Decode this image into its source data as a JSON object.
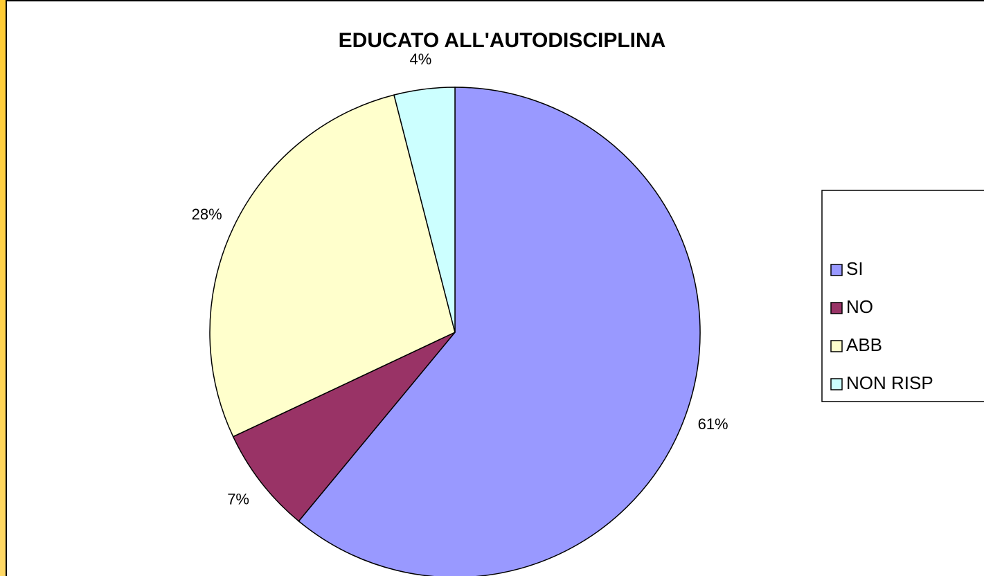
{
  "chart_data": {
    "type": "pie",
    "title": "EDUCATO ALL'AUTODISCIPLINA",
    "categories": [
      "SI",
      "NO",
      "ABB",
      "NON RISP"
    ],
    "values": [
      61,
      7,
      28,
      4
    ],
    "value_labels": [
      "61%",
      "7%",
      "28%",
      "4%"
    ],
    "colors": [
      "#9999ff",
      "#993366",
      "#ffffcc",
      "#ccffff"
    ],
    "legend": "right"
  }
}
